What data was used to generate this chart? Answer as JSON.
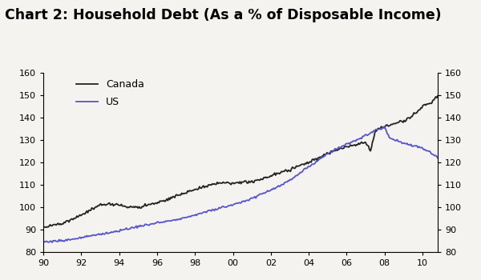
{
  "title": "Chart 2: Household Debt (As a % of Disposable Income)",
  "title_fontsize": 12.5,
  "ylim": [
    80,
    160
  ],
  "yticks": [
    80,
    90,
    100,
    110,
    120,
    130,
    140,
    150,
    160
  ],
  "xtick_labels": [
    "90",
    "92",
    "94",
    "96",
    "98",
    "00",
    "02",
    "04",
    "06",
    "08",
    "10"
  ],
  "canada_color": "#222222",
  "us_color": "#5555cc",
  "background_color": "#f5f3ef",
  "canada_label": "Canada",
  "us_label": "US",
  "xlim_start": 1990,
  "xlim_end": 2010.8,
  "canada_keypoints": [
    [
      1990.0,
      91.0
    ],
    [
      1991.0,
      93.0
    ],
    [
      1992.0,
      96.5
    ],
    [
      1993.0,
      101.0
    ],
    [
      1993.5,
      101.5
    ],
    [
      1994.0,
      101.0
    ],
    [
      1994.5,
      100.0
    ],
    [
      1995.0,
      100.0
    ],
    [
      1995.5,
      101.0
    ],
    [
      1996.0,
      102.0
    ],
    [
      1997.0,
      105.0
    ],
    [
      1998.0,
      108.0
    ],
    [
      1999.0,
      110.5
    ],
    [
      1999.5,
      111.0
    ],
    [
      2000.0,
      110.5
    ],
    [
      2000.5,
      111.0
    ],
    [
      2001.0,
      111.5
    ],
    [
      2002.0,
      114.0
    ],
    [
      2003.0,
      117.0
    ],
    [
      2004.0,
      120.0
    ],
    [
      2005.0,
      124.0
    ],
    [
      2006.0,
      127.0
    ],
    [
      2006.5,
      128.0
    ],
    [
      2007.0,
      129.0
    ],
    [
      2007.25,
      125.0
    ],
    [
      2007.5,
      134.0
    ],
    [
      2008.0,
      136.0
    ],
    [
      2009.0,
      138.5
    ],
    [
      2009.5,
      141.0
    ],
    [
      2010.0,
      145.0
    ],
    [
      2010.5,
      147.0
    ],
    [
      2010.8,
      150.0
    ]
  ],
  "us_keypoints": [
    [
      1990.0,
      84.5
    ],
    [
      1991.0,
      85.0
    ],
    [
      1992.0,
      86.5
    ],
    [
      1993.0,
      88.0
    ],
    [
      1994.0,
      89.5
    ],
    [
      1995.0,
      91.5
    ],
    [
      1996.0,
      93.0
    ],
    [
      1997.0,
      94.5
    ],
    [
      1998.0,
      96.5
    ],
    [
      1999.0,
      99.0
    ],
    [
      2000.0,
      101.0
    ],
    [
      2001.0,
      104.0
    ],
    [
      2002.0,
      107.5
    ],
    [
      2003.0,
      112.0
    ],
    [
      2004.0,
      118.0
    ],
    [
      2005.0,
      124.0
    ],
    [
      2006.0,
      128.0
    ],
    [
      2007.0,
      132.0
    ],
    [
      2007.5,
      134.5
    ],
    [
      2008.0,
      135.5
    ],
    [
      2008.25,
      131.0
    ],
    [
      2009.0,
      128.5
    ],
    [
      2009.5,
      127.5
    ],
    [
      2010.0,
      126.5
    ],
    [
      2010.5,
      124.0
    ],
    [
      2010.8,
      122.5
    ]
  ]
}
